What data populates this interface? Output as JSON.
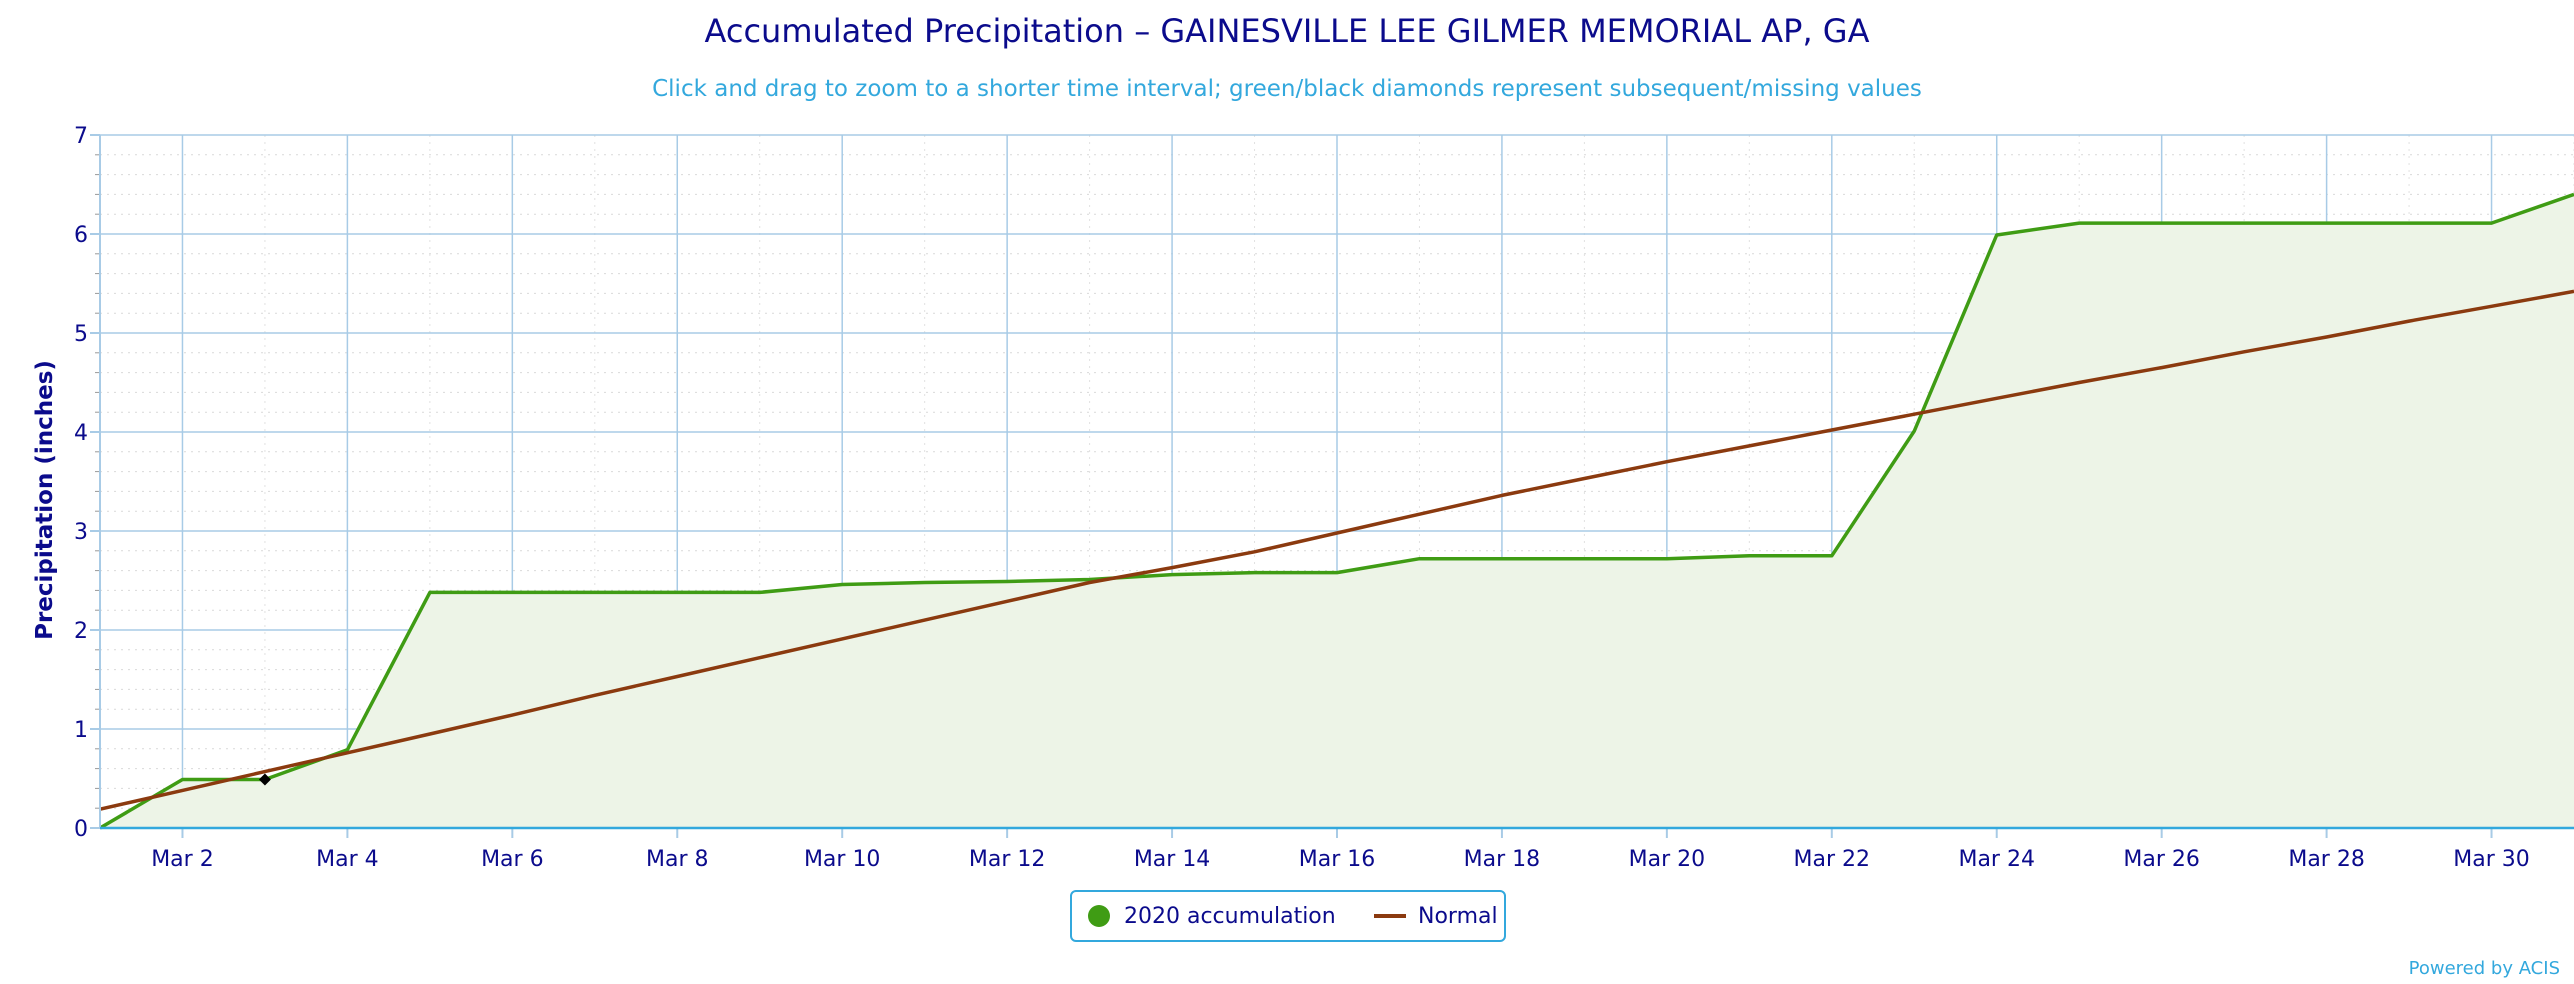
{
  "title": "Accumulated Precipitation – GAINESVILLE LEE GILMER MEMORIAL AP, GA",
  "subtitle": "Click and drag to zoom to a shorter time interval; green/black diamonds represent subsequent/missing values",
  "credits": "Powered by ACIS",
  "colors": {
    "accumulation": "#3f9c14",
    "accumulation_fill": "#edf4e7",
    "normal": "#8b3a0f",
    "axis_text": "#0b0b8c",
    "grid": "#a8cbe6",
    "accent": "#33a8dd"
  },
  "chart_data": {
    "type": "area",
    "xlabel": "",
    "ylabel": "Precipitation (inches)",
    "xlim": [
      1,
      31
    ],
    "ylim": [
      0,
      7
    ],
    "y_ticks": [
      "0",
      "1",
      "2",
      "3",
      "4",
      "5",
      "6",
      "7"
    ],
    "x_ticks": [
      {
        "day": 2,
        "label": "Mar 2"
      },
      {
        "day": 4,
        "label": "Mar 4"
      },
      {
        "day": 6,
        "label": "Mar 6"
      },
      {
        "day": 8,
        "label": "Mar 8"
      },
      {
        "day": 10,
        "label": "Mar 10"
      },
      {
        "day": 12,
        "label": "Mar 12"
      },
      {
        "day": 14,
        "label": "Mar 14"
      },
      {
        "day": 16,
        "label": "Mar 16"
      },
      {
        "day": 18,
        "label": "Mar 18"
      },
      {
        "day": 20,
        "label": "Mar 20"
      },
      {
        "day": 22,
        "label": "Mar 22"
      },
      {
        "day": 24,
        "label": "Mar 24"
      },
      {
        "day": 26,
        "label": "Mar 26"
      },
      {
        "day": 28,
        "label": "Mar 28"
      },
      {
        "day": 30,
        "label": "Mar 30"
      }
    ],
    "grid": true,
    "legend_position": "bottom-center",
    "series": [
      {
        "name": "2020 accumulation",
        "x": [
          1,
          2,
          3,
          4,
          5,
          6,
          7,
          8,
          9,
          10,
          11,
          12,
          13,
          14,
          15,
          16,
          17,
          18,
          19,
          20,
          21,
          22,
          23,
          24,
          25,
          26,
          27,
          28,
          29,
          30,
          31
        ],
        "y": [
          0,
          0.49,
          0.49,
          0.79,
          2.38,
          2.38,
          2.38,
          2.38,
          2.38,
          2.46,
          2.48,
          2.49,
          2.51,
          2.56,
          2.58,
          2.58,
          2.72,
          2.72,
          2.72,
          2.72,
          2.75,
          2.75,
          4.01,
          5.99,
          6.11,
          6.11,
          6.11,
          6.11,
          6.11,
          6.11,
          6.4
        ]
      },
      {
        "name": "Normal",
        "x": [
          1,
          2,
          3,
          4,
          5,
          6,
          7,
          8,
          9,
          10,
          11,
          12,
          13,
          14,
          15,
          16,
          17,
          18,
          19,
          20,
          21,
          22,
          23,
          24,
          25,
          26,
          27,
          28,
          29,
          30,
          31
        ],
        "y": [
          0.19,
          0.38,
          0.57,
          0.76,
          0.95,
          1.14,
          1.34,
          1.53,
          1.72,
          1.91,
          2.1,
          2.29,
          2.48,
          2.63,
          2.79,
          2.98,
          3.17,
          3.36,
          3.53,
          3.7,
          3.86,
          4.02,
          4.18,
          4.34,
          4.5,
          4.65,
          4.81,
          4.96,
          5.12,
          5.27,
          5.42
        ]
      }
    ],
    "missing_markers": [
      {
        "x": 3,
        "y": 0.49
      }
    ]
  }
}
